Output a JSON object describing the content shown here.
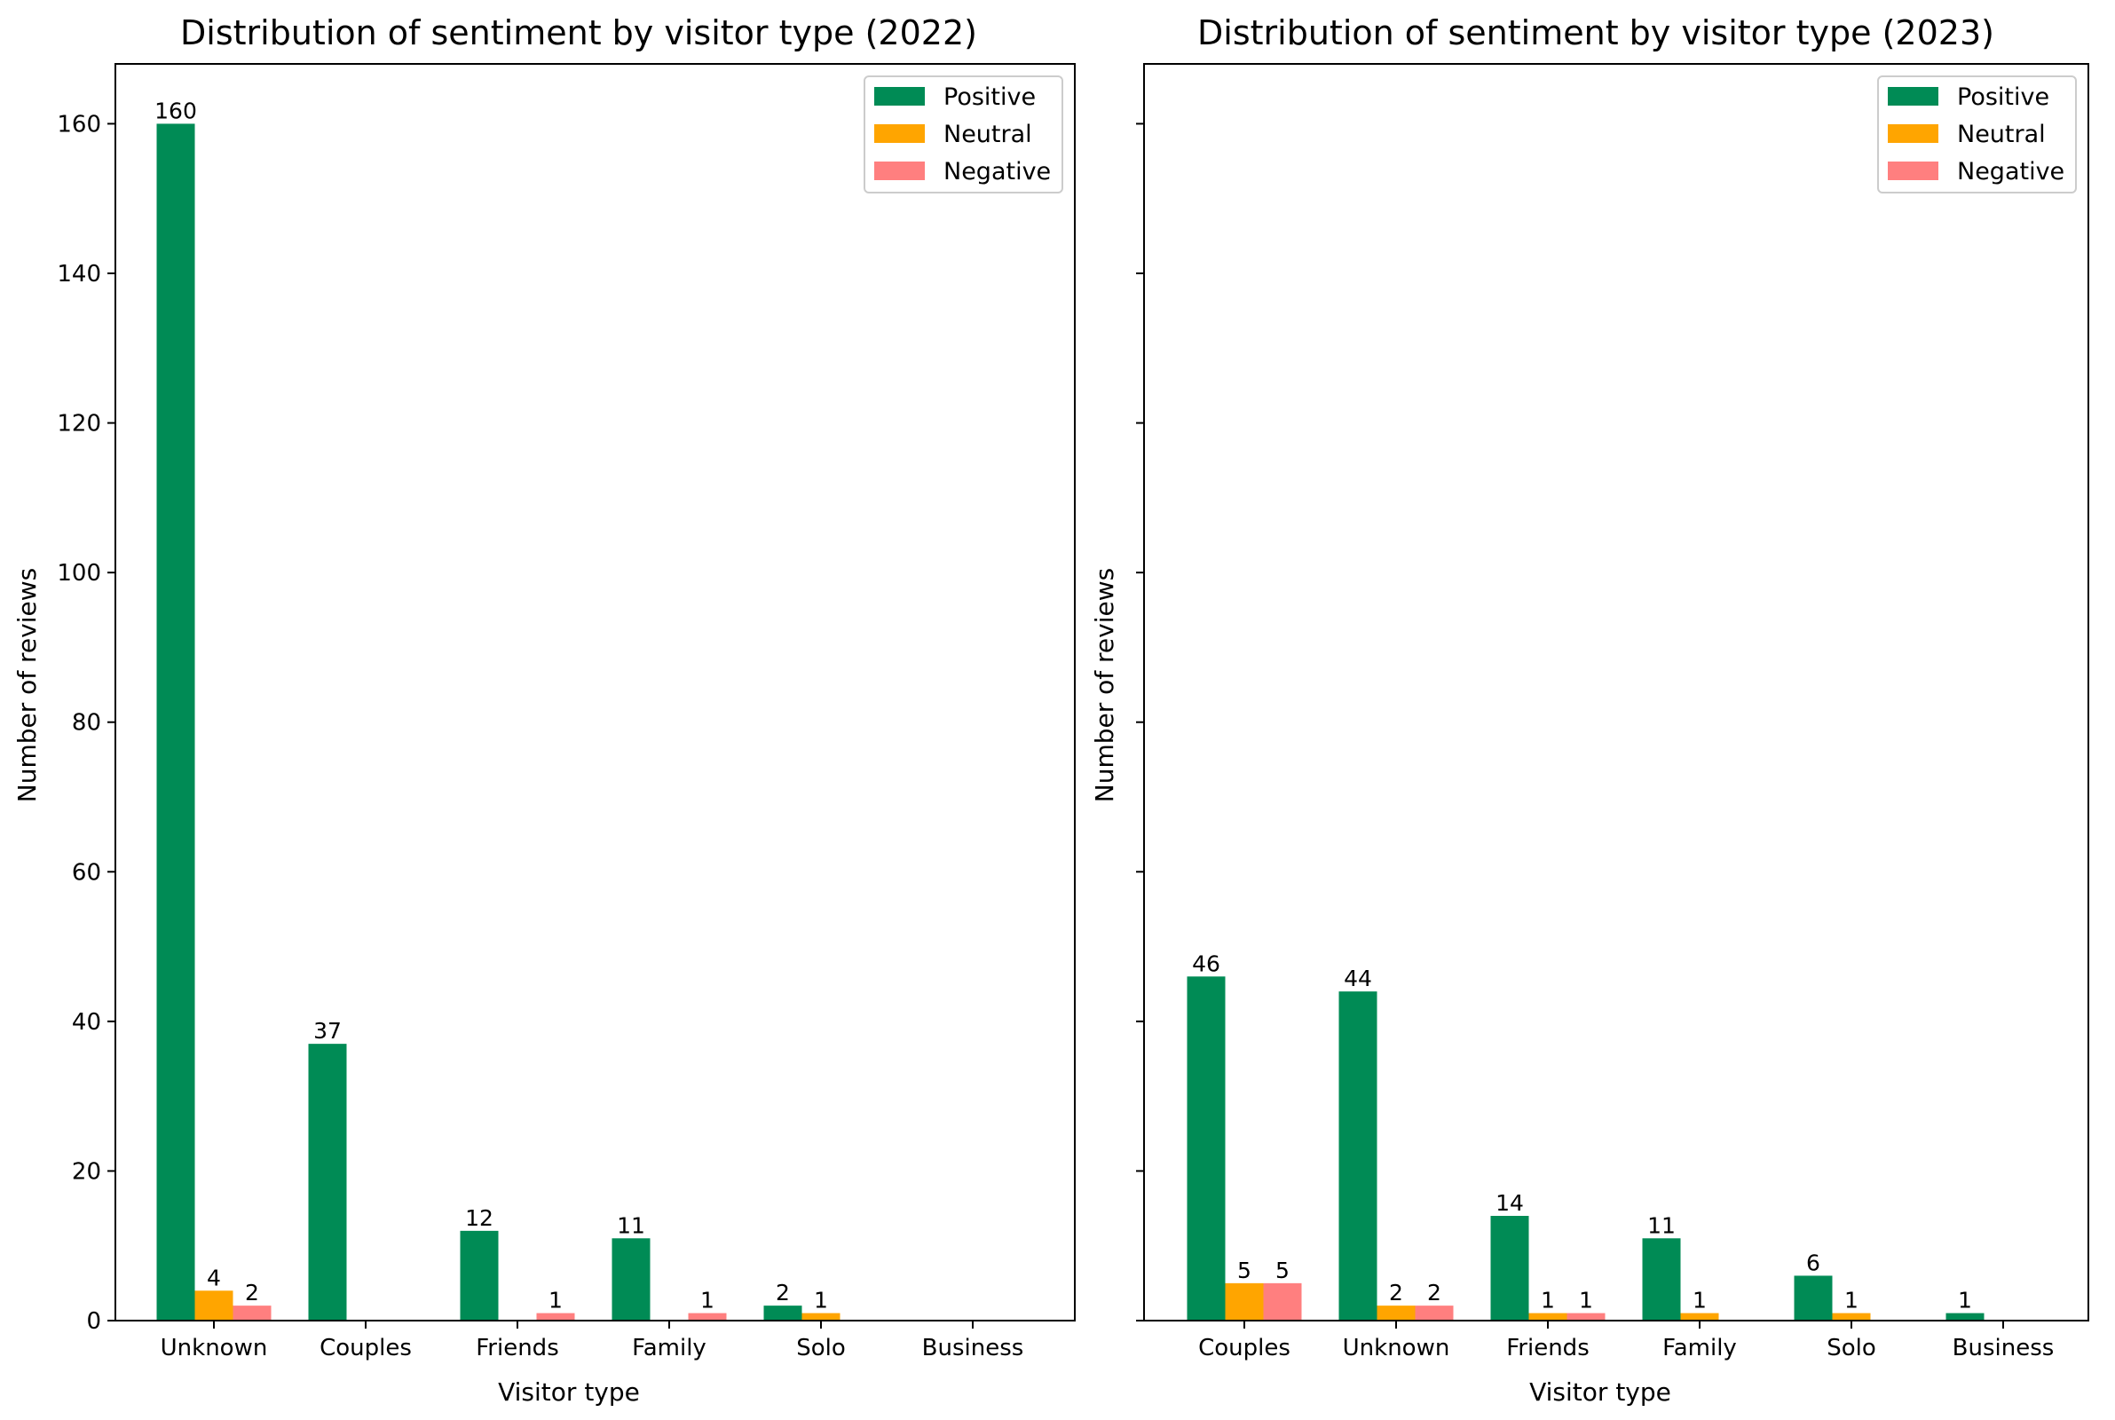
{
  "chart_data": [
    {
      "type": "bar",
      "title": "Distribution of sentiment by visitor type (2022)",
      "xlabel": "Visitor type",
      "ylabel": "Number of reviews",
      "ylim": [
        0,
        168
      ],
      "yticks": [
        0,
        20,
        40,
        60,
        80,
        100,
        120,
        140,
        160
      ],
      "show_ytick_labels": true,
      "legend_position": "top-right",
      "categories": [
        "Unknown",
        "Couples",
        "Friends",
        "Family",
        "Solo",
        "Business"
      ],
      "series": [
        {
          "name": "Positive",
          "color": "#008b55",
          "values": [
            160,
            37,
            12,
            11,
            2,
            0
          ]
        },
        {
          "name": "Neutral",
          "color": "#ffa500",
          "values": [
            4,
            0,
            0,
            0,
            1,
            0
          ]
        },
        {
          "name": "Negative",
          "color": "#ff7f7f",
          "values": [
            2,
            0,
            1,
            1,
            0,
            0
          ]
        }
      ]
    },
    {
      "type": "bar",
      "title": "Distribution of sentiment by visitor type (2023)",
      "xlabel": "Visitor type",
      "ylabel": "Number of reviews",
      "ylim": [
        0,
        168
      ],
      "yticks": [
        0,
        20,
        40,
        60,
        80,
        100,
        120,
        140,
        160
      ],
      "show_ytick_labels": false,
      "legend_position": "top-right",
      "categories": [
        "Couples",
        "Unknown",
        "Friends",
        "Family",
        "Solo",
        "Business"
      ],
      "series": [
        {
          "name": "Positive",
          "color": "#008b55",
          "values": [
            46,
            44,
            14,
            11,
            6,
            1
          ]
        },
        {
          "name": "Neutral",
          "color": "#ffa500",
          "values": [
            5,
            2,
            1,
            1,
            1,
            0
          ]
        },
        {
          "name": "Negative",
          "color": "#ff7f7f",
          "values": [
            5,
            2,
            1,
            0,
            0,
            0
          ]
        }
      ]
    }
  ]
}
